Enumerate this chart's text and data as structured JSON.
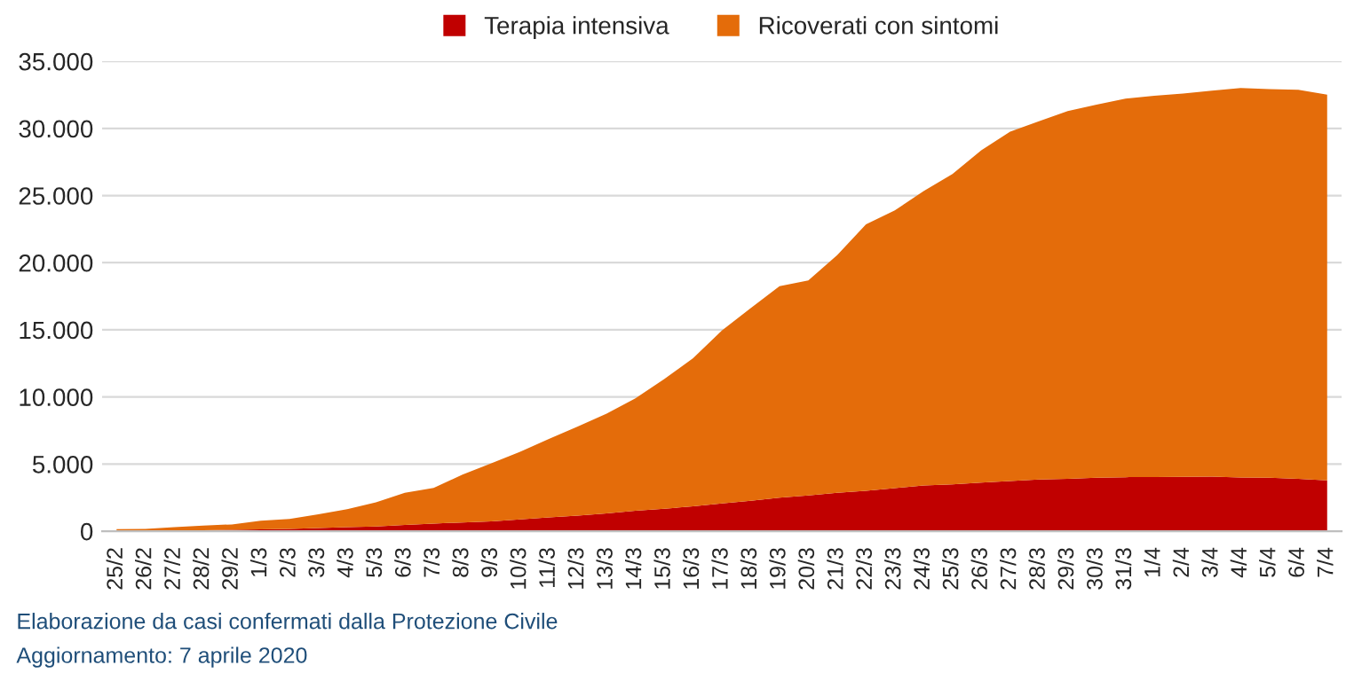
{
  "chart_data": {
    "type": "area",
    "stacked": true,
    "categories": [
      "25/2",
      "26/2",
      "27/2",
      "28/2",
      "29/2",
      "1/3",
      "2/3",
      "3/3",
      "4/3",
      "5/3",
      "6/3",
      "7/3",
      "8/3",
      "9/3",
      "10/3",
      "11/3",
      "12/3",
      "13/3",
      "14/3",
      "15/3",
      "16/3",
      "17/3",
      "18/3",
      "19/3",
      "20/3",
      "21/3",
      "22/3",
      "23/3",
      "24/3",
      "25/3",
      "26/3",
      "27/3",
      "28/3",
      "29/3",
      "30/3",
      "31/3",
      "1/4",
      "2/4",
      "3/4",
      "4/4",
      "5/4",
      "6/4",
      "7/4"
    ],
    "series": [
      {
        "name": "Terapia intensiva",
        "color": "#c00000",
        "values": [
          35,
          36,
          56,
          64,
          105,
          140,
          166,
          229,
          295,
          351,
          462,
          567,
          650,
          733,
          877,
          1028,
          1153,
          1328,
          1518,
          1672,
          1851,
          2060,
          2257,
          2498,
          2655,
          2857,
          3009,
          3204,
          3396,
          3489,
          3612,
          3732,
          3856,
          3906,
          3981,
          4023,
          4035,
          4053,
          4068,
          3994,
          3977,
          3898,
          3792
        ]
      },
      {
        "name": "Ricoverati con sintomi",
        "color": "#e46c0a",
        "values": [
          114,
          128,
          248,
          345,
          401,
          639,
          742,
          1034,
          1346,
          1790,
          2394,
          2651,
          3557,
          4316,
          5038,
          5838,
          6650,
          7426,
          8372,
          9663,
          11025,
          12894,
          14363,
          15757,
          16020,
          17708,
          19846,
          20692,
          21937,
          23112,
          24753,
          26029,
          26676,
          27386,
          27795,
          28192,
          28403,
          28540,
          28741,
          29010,
          28949,
          28976,
          28718
        ]
      }
    ],
    "ylim": [
      0,
      35000
    ],
    "yticks": [
      {
        "value": 0,
        "label": "0"
      },
      {
        "value": 5000,
        "label": "5.000"
      },
      {
        "value": 10000,
        "label": "10.000"
      },
      {
        "value": 15000,
        "label": "15.000"
      },
      {
        "value": 20000,
        "label": "20.000"
      },
      {
        "value": 25000,
        "label": "25.000"
      },
      {
        "value": 30000,
        "label": "30.000"
      },
      {
        "value": 35000,
        "label": "35.000"
      }
    ],
    "grid": "y",
    "legend": "top",
    "annotations": [
      "Elaborazione da casi confermati dalla Protezione Civile",
      "Aggiornamento: 7 aprile 2020"
    ]
  }
}
